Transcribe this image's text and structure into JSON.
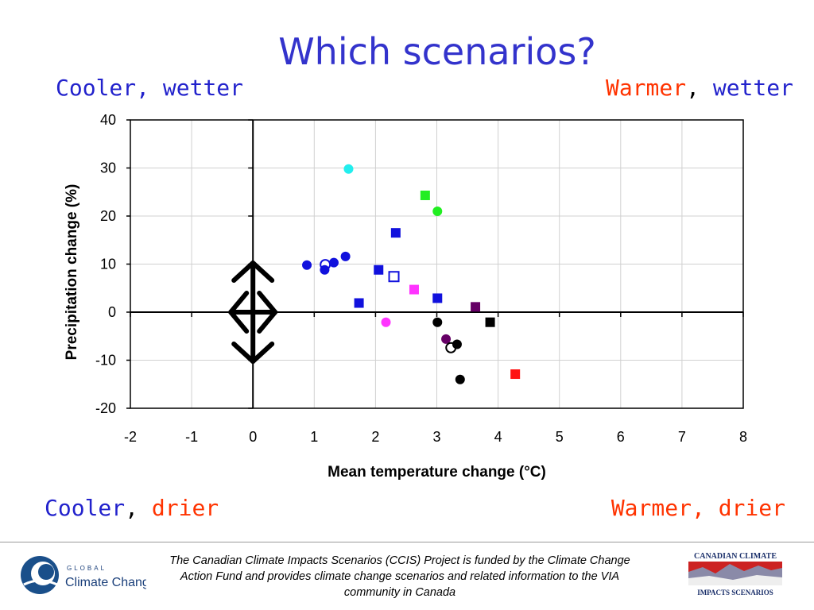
{
  "slide": {
    "title": "Which scenarios?",
    "quadrants": {
      "cooler_wetter": {
        "word1": "Cooler,",
        "word2": "wetter"
      },
      "warmer_wetter": {
        "word1": "Warmer",
        "sep": ",",
        "word2": "wetter"
      },
      "cooler_drier": {
        "word1": "Cooler",
        "sep": ",",
        "word2": "drier"
      },
      "warmer_drier": {
        "word1": "Warmer,",
        "word2": "drier"
      }
    },
    "footer": "The Canadian Climate Impacts Scenarios (CCIS) Project is funded by the Climate Change Action Fund and provides climate change scenarios and related information to the VIA community in Canada",
    "logos": {
      "left": {
        "line1": "GLOBAL",
        "line2": "Climate Change"
      },
      "right": {
        "line1": "CANADIAN CLIMATE",
        "line2": "IMPACTS SCENARIOS"
      }
    },
    "colors": {
      "title": "#3333cc",
      "blue": "#2222cc",
      "red": "#ff3300"
    }
  },
  "chart_data": {
    "type": "scatter",
    "xlabel": "Mean temperature change (°C)",
    "ylabel": "Precipitation change (%)",
    "xlim": [
      -2,
      8
    ],
    "ylim": [
      -20,
      40
    ],
    "xticks": [
      -2,
      -1,
      0,
      1,
      2,
      3,
      4,
      5,
      6,
      7,
      8
    ],
    "yticks": [
      -20,
      -10,
      0,
      10,
      20,
      30,
      40
    ],
    "grid": true,
    "points": [
      {
        "x": 0.88,
        "y": 9.8,
        "marker": "circle",
        "filled": true,
        "color": "#1111dd"
      },
      {
        "x": 1.18,
        "y": 9.9,
        "marker": "circle",
        "filled": false,
        "color": "#1111dd"
      },
      {
        "x": 1.17,
        "y": 8.8,
        "marker": "circle",
        "filled": true,
        "color": "#1111dd"
      },
      {
        "x": 1.32,
        "y": 10.3,
        "marker": "circle",
        "filled": true,
        "color": "#1111dd"
      },
      {
        "x": 1.51,
        "y": 11.6,
        "marker": "circle",
        "filled": true,
        "color": "#1111dd"
      },
      {
        "x": 1.56,
        "y": 29.8,
        "marker": "circle",
        "filled": true,
        "color": "#22eeee"
      },
      {
        "x": 1.73,
        "y": 1.9,
        "marker": "square",
        "filled": true,
        "color": "#1111dd"
      },
      {
        "x": 2.05,
        "y": 8.8,
        "marker": "square",
        "filled": true,
        "color": "#1111dd"
      },
      {
        "x": 2.17,
        "y": -2.1,
        "marker": "circle",
        "filled": true,
        "color": "#ff33ff"
      },
      {
        "x": 2.3,
        "y": 7.4,
        "marker": "square",
        "filled": false,
        "color": "#1111dd"
      },
      {
        "x": 2.33,
        "y": 16.5,
        "marker": "square",
        "filled": true,
        "color": "#1111dd"
      },
      {
        "x": 2.63,
        "y": 4.7,
        "marker": "square",
        "filled": true,
        "color": "#ff33ff"
      },
      {
        "x": 2.81,
        "y": 24.3,
        "marker": "square",
        "filled": true,
        "color": "#22ee22"
      },
      {
        "x": 3.01,
        "y": 21.0,
        "marker": "circle",
        "filled": true,
        "color": "#22ee22"
      },
      {
        "x": 3.01,
        "y": 2.9,
        "marker": "square",
        "filled": true,
        "color": "#1111dd"
      },
      {
        "x": 3.01,
        "y": -2.1,
        "marker": "circle",
        "filled": true,
        "color": "#000000"
      },
      {
        "x": 3.15,
        "y": -5.6,
        "marker": "circle",
        "filled": true,
        "color": "#660066"
      },
      {
        "x": 3.23,
        "y": -7.4,
        "marker": "circle",
        "filled": false,
        "color": "#000000"
      },
      {
        "x": 3.33,
        "y": -6.7,
        "marker": "circle",
        "filled": true,
        "color": "#000000"
      },
      {
        "x": 3.38,
        "y": -14.0,
        "marker": "circle",
        "filled": true,
        "color": "#000000"
      },
      {
        "x": 3.63,
        "y": 1.1,
        "marker": "square",
        "filled": true,
        "color": "#660066"
      },
      {
        "x": 3.87,
        "y": -2.1,
        "marker": "square",
        "filled": true,
        "color": "#000000"
      },
      {
        "x": 4.28,
        "y": -12.9,
        "marker": "square",
        "filled": true,
        "color": "#ff1111"
      }
    ]
  }
}
